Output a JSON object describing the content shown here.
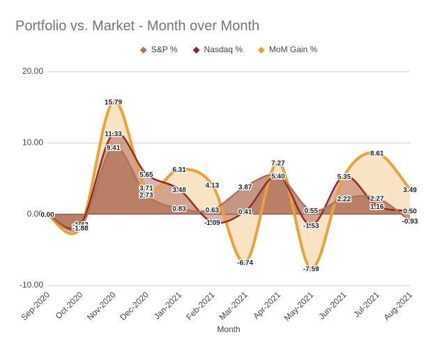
{
  "chart_data": {
    "type": "area",
    "title": "Portfolio vs. Market - Month over Month",
    "x_label": "Month",
    "categories": [
      "Sep-2020",
      "Oct-2020",
      "Nov-2020",
      "Dec-2020",
      "Jan-2021",
      "Feb-2021",
      "Mar-2021",
      "Apr-2021",
      "May-2021",
      "Jun-2021",
      "Jul-2021",
      "Aug-2021"
    ],
    "series": [
      {
        "name": "S&P %",
        "color": "#b0735a",
        "values": [
          0,
          -1.88,
          9.41,
          2.73,
          0.83,
          0.63,
          3.87,
          5.4,
          0.55,
          2.22,
          2.27,
          -0.93
        ],
        "value_labels": [
          "0.00",
          "-1.88",
          "9.41",
          "2.73",
          "0.83",
          "0.63",
          "3.87",
          "5.40",
          "0.55",
          "2.22",
          "2.27",
          "-0.93"
        ]
      },
      {
        "name": "Nasdaq %",
        "color": "#8e2c2c",
        "values": [
          0,
          -1.42,
          11.33,
          5.65,
          3.48,
          -1.09,
          0.41,
          5.4,
          -1.53,
          5.35,
          1.16,
          0.5
        ],
        "value_labels": [
          "0.00",
          "-1.42",
          "11.33",
          "5.65",
          "3.48",
          "-1.09",
          "0.41",
          "5.40",
          "-1.53",
          "5.35",
          "1.16",
          "0.50"
        ]
      },
      {
        "name": "MoM Gain %",
        "color": "#e9a23b",
        "values": [
          0,
          -1.88,
          15.79,
          3.71,
          6.31,
          4.13,
          -6.74,
          7.27,
          -7.59,
          5.35,
          8.61,
          3.49
        ],
        "value_labels": [
          "0.00",
          "-1.88",
          "15.79",
          "3.71",
          "6.31",
          "4.13",
          "-6.74",
          "7.27",
          "-7.59",
          "5.35",
          "8.61",
          "3.49"
        ]
      }
    ],
    "ylim": [
      -10,
      20
    ],
    "yticks": [
      {
        "value": -10,
        "label": "-10.00"
      },
      {
        "value": 0,
        "label": "0.00"
      },
      {
        "value": 10,
        "label": "10.00"
      },
      {
        "value": 20,
        "label": "20.00"
      }
    ],
    "grid": true,
    "legend": "top"
  }
}
